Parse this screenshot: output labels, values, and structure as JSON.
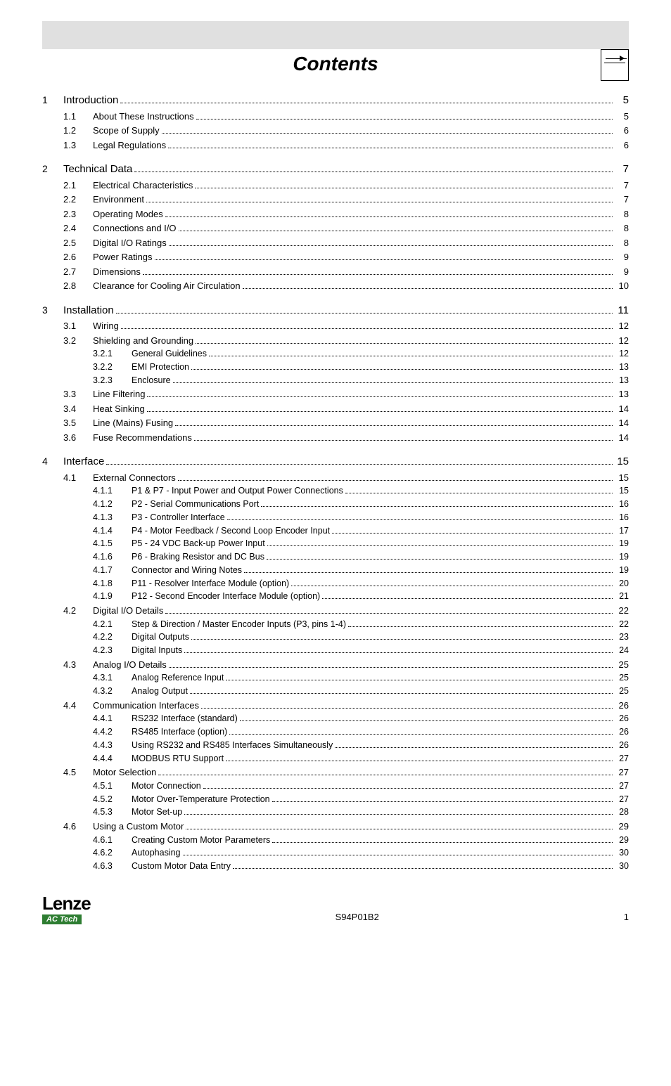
{
  "title": "Contents",
  "footer": {
    "logo_main": "Lenze",
    "logo_sub": "AC Tech",
    "doc_code": "S94P01B2",
    "page_number": "1"
  },
  "colors": {
    "header_bar": "#e0e0e0",
    "logo_sub_bg": "#2e7d32",
    "text": "#000000",
    "background": "#ffffff"
  },
  "toc": [
    {
      "lvl": 1,
      "num": "1",
      "label": "Introduction",
      "page": "5"
    },
    {
      "lvl": 2,
      "num": "1.1",
      "label": "About These Instructions",
      "page": "5"
    },
    {
      "lvl": 2,
      "num": "1.2",
      "label": "Scope of Supply",
      "page": "6"
    },
    {
      "lvl": 2,
      "num": "1.3",
      "label": "Legal Regulations",
      "page": "6"
    },
    {
      "lvl": 1,
      "num": "2",
      "label": "Technical Data",
      "page": "7"
    },
    {
      "lvl": 2,
      "num": "2.1",
      "label": "Electrical Characteristics",
      "page": "7"
    },
    {
      "lvl": 2,
      "num": "2.2",
      "label": "Environment",
      "page": "7"
    },
    {
      "lvl": 2,
      "num": "2.3",
      "label": "Operating Modes",
      "page": "8"
    },
    {
      "lvl": 2,
      "num": "2.4",
      "label": "Connections and I/O",
      "page": "8"
    },
    {
      "lvl": 2,
      "num": "2.5",
      "label": "Digital I/O Ratings",
      "page": "8"
    },
    {
      "lvl": 2,
      "num": "2.6",
      "label": "Power Ratings",
      "page": "9"
    },
    {
      "lvl": 2,
      "num": "2.7",
      "label": "Dimensions",
      "page": "9"
    },
    {
      "lvl": 2,
      "num": "2.8",
      "label": "Clearance for Cooling Air Circulation",
      "page": "10"
    },
    {
      "lvl": 1,
      "num": "3",
      "label": "Installation",
      "page": "11"
    },
    {
      "lvl": 2,
      "num": "3.1",
      "label": "Wiring",
      "page": "12"
    },
    {
      "lvl": 2,
      "num": "3.2",
      "label": "Shielding and Grounding",
      "page": "12"
    },
    {
      "lvl": 3,
      "num": "3.2.1",
      "label": "General Guidelines",
      "page": "12"
    },
    {
      "lvl": 3,
      "num": "3.2.2",
      "label": "EMI Protection",
      "page": "13"
    },
    {
      "lvl": 3,
      "num": "3.2.3",
      "label": "Enclosure",
      "page": "13"
    },
    {
      "lvl": 2,
      "num": "3.3",
      "label": "Line Filtering",
      "page": "13"
    },
    {
      "lvl": 2,
      "num": "3.4",
      "label": "Heat Sinking",
      "page": "14"
    },
    {
      "lvl": 2,
      "num": "3.5",
      "label": "Line (Mains) Fusing",
      "page": "14"
    },
    {
      "lvl": 2,
      "num": "3.6",
      "label": "Fuse Recommendations",
      "page": "14"
    },
    {
      "lvl": 1,
      "num": "4",
      "label": "Interface",
      "page": "15"
    },
    {
      "lvl": 2,
      "num": "4.1",
      "label": "External Connectors",
      "page": "15"
    },
    {
      "lvl": 3,
      "num": "4.1.1",
      "label": "P1 & P7 - Input Power and Output Power Connections",
      "page": "15"
    },
    {
      "lvl": 3,
      "num": "4.1.2",
      "label": "P2 - Serial Communications Port",
      "page": "16"
    },
    {
      "lvl": 3,
      "num": "4.1.3",
      "label": "P3 - Controller Interface",
      "page": "16"
    },
    {
      "lvl": 3,
      "num": "4.1.4",
      "label": "P4 - Motor Feedback / Second Loop Encoder Input",
      "page": "17"
    },
    {
      "lvl": 3,
      "num": "4.1.5",
      "label": "P5 - 24 VDC Back-up Power Input",
      "page": "19"
    },
    {
      "lvl": 3,
      "num": "4.1.6",
      "label": "P6 - Braking Resistor and DC Bus",
      "page": "19"
    },
    {
      "lvl": 3,
      "num": "4.1.7",
      "label": "Connector and Wiring Notes",
      "page": "19"
    },
    {
      "lvl": 3,
      "num": "4.1.8",
      "label": "P11 - Resolver Interface Module (option)",
      "page": "20"
    },
    {
      "lvl": 3,
      "num": "4.1.9",
      "label": "P12 - Second Encoder Interface Module (option)",
      "page": "21"
    },
    {
      "lvl": 2,
      "num": "4.2",
      "label": "Digital I/O Details",
      "page": "22"
    },
    {
      "lvl": 3,
      "num": "4.2.1",
      "label": "Step & Direction / Master Encoder Inputs (P3, pins 1-4)",
      "page": "22"
    },
    {
      "lvl": 3,
      "num": "4.2.2",
      "label": "Digital Outputs",
      "page": "23"
    },
    {
      "lvl": 3,
      "num": "4.2.3",
      "label": "Digital Inputs",
      "page": "24"
    },
    {
      "lvl": 2,
      "num": "4.3",
      "label": "Analog I/O Details",
      "page": "25"
    },
    {
      "lvl": 3,
      "num": "4.3.1",
      "label": "Analog Reference Input",
      "page": "25"
    },
    {
      "lvl": 3,
      "num": "4.3.2",
      "label": "Analog Output",
      "page": "25"
    },
    {
      "lvl": 2,
      "num": "4.4",
      "label": "Communication Interfaces",
      "page": "26"
    },
    {
      "lvl": 3,
      "num": "4.4.1",
      "label": "RS232 Interface (standard)",
      "page": "26"
    },
    {
      "lvl": 3,
      "num": "4.4.2",
      "label": "RS485 Interface (option)",
      "page": "26"
    },
    {
      "lvl": 3,
      "num": "4.4.3",
      "label": "Using RS232 and RS485 Interfaces Simultaneously",
      "page": "26"
    },
    {
      "lvl": 3,
      "num": "4.4.4",
      "label": "MODBUS RTU Support",
      "page": "27"
    },
    {
      "lvl": 2,
      "num": "4.5",
      "label": "Motor Selection",
      "page": "27"
    },
    {
      "lvl": 3,
      "num": "4.5.1",
      "label": "Motor Connection",
      "page": "27"
    },
    {
      "lvl": 3,
      "num": "4.5.2",
      "label": "Motor Over-Temperature Protection",
      "page": "27"
    },
    {
      "lvl": 3,
      "num": "4.5.3",
      "label": "Motor Set-up",
      "page": "28"
    },
    {
      "lvl": 2,
      "num": "4.6",
      "label": "Using a Custom Motor",
      "page": "29"
    },
    {
      "lvl": 3,
      "num": "4.6.1",
      "label": "Creating Custom Motor Parameters",
      "page": "29"
    },
    {
      "lvl": 3,
      "num": "4.6.2",
      "label": "Autophasing",
      "page": "30"
    },
    {
      "lvl": 3,
      "num": "4.6.3",
      "label": "Custom Motor Data Entry",
      "page": "30"
    }
  ]
}
